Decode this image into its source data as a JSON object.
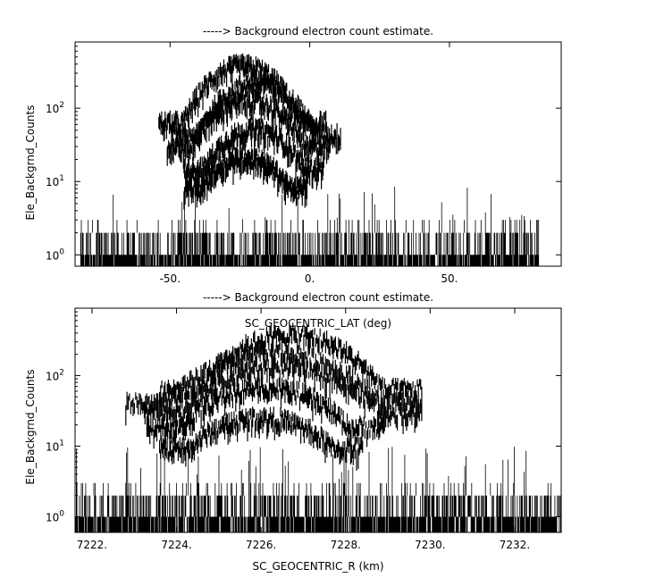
{
  "chart_data": [
    {
      "type": "line",
      "title": "-----> Background electron count estimate.",
      "xlabel": "SC_GEOCENTRIC_LAT (deg)",
      "ylabel": "Ele_Backgrnd_Counts",
      "xlim": [
        -84,
        90
      ],
      "ylim": [
        0.7,
        800
      ],
      "yscale": "log",
      "grid": false,
      "xticks": [
        {
          "v": -50,
          "label": "-50."
        },
        {
          "v": 0,
          "label": "0."
        },
        {
          "v": 50,
          "label": "50."
        }
      ],
      "yticks": [
        {
          "v": 1,
          "base": "10",
          "exp": "0"
        },
        {
          "v": 10,
          "base": "10",
          "exp": "1"
        },
        {
          "v": 100,
          "base": "10",
          "exp": "2"
        }
      ],
      "data_x_range": [
        -82,
        82
      ],
      "baseline": {
        "floor": 0.7,
        "low": 1,
        "high": 3,
        "spikes": 9
      },
      "series": [
        {
          "center": -24,
          "half_width": 30,
          "peak": 450
        },
        {
          "center": -19,
          "half_width": 30,
          "peak": 260
        },
        {
          "center": -22,
          "half_width": 29,
          "peak": 150
        },
        {
          "center": -20,
          "half_width": 25,
          "peak": 60
        },
        {
          "center": -23,
          "half_width": 22,
          "peak": 25
        }
      ]
    },
    {
      "type": "line",
      "title": "-----> Background electron count estimate.",
      "xlabel": "SC_GEOCENTRIC_R (km)",
      "ylabel": "Ele_Backgrnd_Counts",
      "xlim": [
        7221.6,
        7233.1
      ],
      "ylim": [
        0.6,
        900
      ],
      "yscale": "log",
      "grid": false,
      "xticks": [
        {
          "v": 7222,
          "label": "7222."
        },
        {
          "v": 7224,
          "label": "7224."
        },
        {
          "v": 7226,
          "label": "7226."
        },
        {
          "v": 7228,
          "label": "7228."
        },
        {
          "v": 7230,
          "label": "7230."
        },
        {
          "v": 7232,
          "label": "7232."
        }
      ],
      "yticks": [
        {
          "v": 1,
          "base": "10",
          "exp": "0"
        },
        {
          "v": 10,
          "base": "10",
          "exp": "1"
        },
        {
          "v": 100,
          "base": "10",
          "exp": "2"
        }
      ],
      "data_x_range": [
        7221.6,
        7233.1
      ],
      "baseline": {
        "floor": 0.6,
        "low": 1,
        "high": 3,
        "spikes": 10
      },
      "series": [
        {
          "center": 7226.7,
          "half_width": 3.1,
          "peak": 450
        },
        {
          "center": 7226.3,
          "half_width": 3.5,
          "peak": 250
        },
        {
          "center": 7226.5,
          "half_width": 3.3,
          "peak": 160
        },
        {
          "center": 7226.1,
          "half_width": 2.8,
          "peak": 80
        },
        {
          "center": 7226.0,
          "half_width": 2.4,
          "peak": 30
        }
      ]
    }
  ]
}
